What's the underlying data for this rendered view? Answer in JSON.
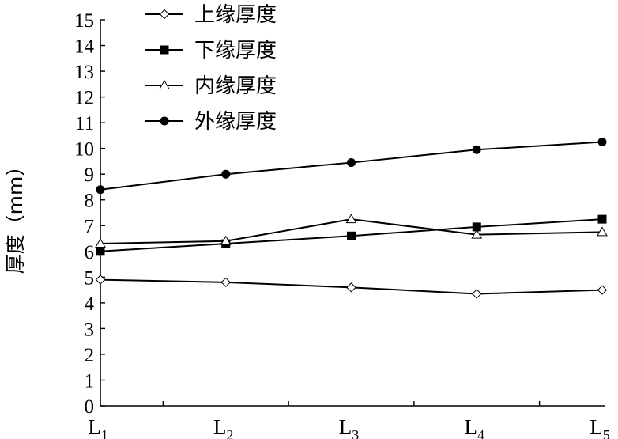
{
  "chart_data": {
    "type": "line",
    "title": "",
    "xlabel": "",
    "ylabel": "厚度（mm）",
    "ylim": [
      0,
      15
    ],
    "yticks": [
      0,
      1,
      2,
      3,
      4,
      5,
      6,
      7,
      8,
      9,
      10,
      11,
      12,
      13,
      14,
      15
    ],
    "categories": [
      {
        "main": "L",
        "sub": "1"
      },
      {
        "main": "L",
        "sub": "2"
      },
      {
        "main": "L",
        "sub": "3"
      },
      {
        "main": "L",
        "sub": "4"
      },
      {
        "main": "L",
        "sub": "5"
      }
    ],
    "grid": false,
    "legend": "top-left",
    "series": [
      {
        "name": "上缘厚度",
        "marker": "diamond-open",
        "values": [
          4.9,
          4.8,
          4.6,
          4.35,
          4.5
        ]
      },
      {
        "name": "下缘厚度",
        "marker": "square-filled",
        "values": [
          6.0,
          6.3,
          6.6,
          6.95,
          7.25
        ]
      },
      {
        "name": "内缘厚度",
        "marker": "triangle-open",
        "values": [
          6.3,
          6.4,
          7.25,
          6.65,
          6.75
        ]
      },
      {
        "name": "外缘厚度",
        "marker": "circle-filled",
        "values": [
          8.4,
          9.0,
          9.45,
          9.95,
          10.25
        ]
      }
    ]
  }
}
